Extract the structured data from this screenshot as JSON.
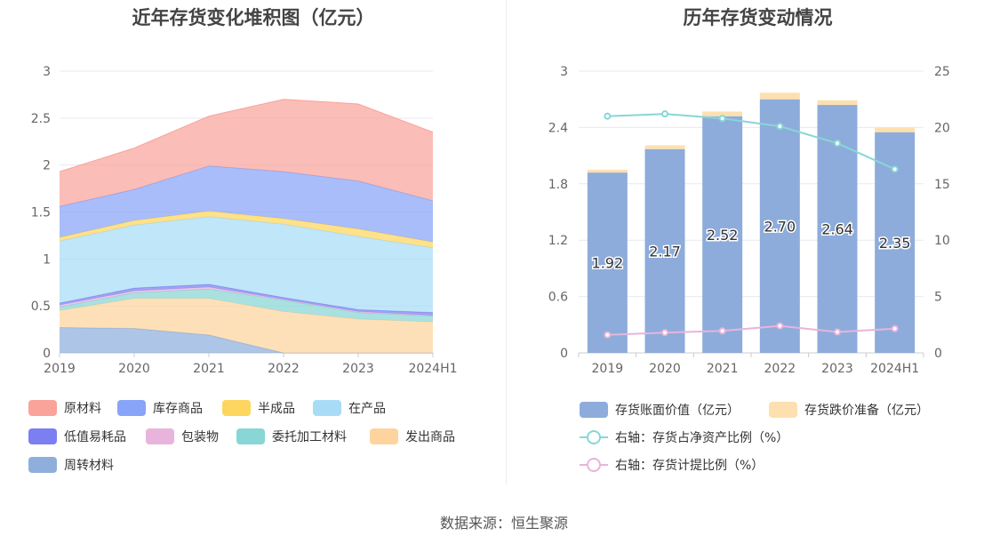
{
  "source": "数据来源：恒生聚源",
  "chart_data": [
    {
      "type": "area",
      "stacked": true,
      "title": "近年存货变化堆积图（亿元）",
      "categories": [
        "2019",
        "2020",
        "2021",
        "2022",
        "2023",
        "2024H1"
      ],
      "y_ticks": [
        "0",
        "0.5",
        "1",
        "1.5",
        "2",
        "2.5",
        "3"
      ],
      "ylim": [
        0,
        3
      ],
      "series": [
        {
          "name": "周转材料",
          "color": "#8eaedc",
          "values": [
            0.27,
            0.26,
            0.19,
            0.0,
            0.0,
            0.0
          ]
        },
        {
          "name": "发出商品",
          "color": "#fdd49d",
          "values": [
            0.18,
            0.32,
            0.39,
            0.44,
            0.36,
            0.33
          ]
        },
        {
          "name": "委托加工材料",
          "color": "#88d6d6",
          "values": [
            0.04,
            0.06,
            0.1,
            0.12,
            0.07,
            0.06
          ]
        },
        {
          "name": "包装物",
          "color": "#e8b4dc",
          "values": [
            0.02,
            0.02,
            0.02,
            0.01,
            0.01,
            0.01
          ]
        },
        {
          "name": "低值易耗品",
          "color": "#7b7ff1",
          "values": [
            0.02,
            0.03,
            0.03,
            0.02,
            0.02,
            0.03
          ]
        },
        {
          "name": "在产品",
          "color": "#a8dcf6",
          "values": [
            0.66,
            0.67,
            0.72,
            0.78,
            0.78,
            0.69
          ]
        },
        {
          "name": "半成品",
          "color": "#fcd65e",
          "values": [
            0.04,
            0.05,
            0.06,
            0.06,
            0.08,
            0.06
          ]
        },
        {
          "name": "库存商品",
          "color": "#88a4f8",
          "values": [
            0.33,
            0.33,
            0.48,
            0.5,
            0.51,
            0.44
          ]
        },
        {
          "name": "原材料",
          "color": "#f9a39b",
          "values": [
            0.37,
            0.44,
            0.53,
            0.77,
            0.82,
            0.73
          ]
        }
      ]
    },
    {
      "type": "bar",
      "title": "历年存货变动情况",
      "categories": [
        "2019",
        "2020",
        "2021",
        "2022",
        "2023",
        "2024H1"
      ],
      "y_ticks": [
        "0",
        "0.6",
        "1.2",
        "1.8",
        "2.4",
        "3"
      ],
      "ylim": [
        0,
        3
      ],
      "y2_ticks": [
        "0",
        "5",
        "10",
        "15",
        "20",
        "25"
      ],
      "y2lim": [
        0,
        25
      ],
      "series": [
        {
          "name": "存货账面价值（亿元）",
          "color": "#8dacdb",
          "values": [
            1.92,
            2.17,
            2.52,
            2.7,
            2.64,
            2.35
          ],
          "labels": [
            "1.92",
            "2.17",
            "2.52",
            "2.70",
            "2.64",
            "2.35"
          ]
        },
        {
          "name": "存货跌价准备（亿元）",
          "color": "#fde0b0",
          "values": [
            0.03,
            0.04,
            0.05,
            0.07,
            0.05,
            0.05
          ]
        }
      ],
      "line_series": [
        {
          "name": "右轴：存货占净资产比例（%）",
          "color": "#88d6d6",
          "values": [
            21.0,
            21.2,
            20.8,
            20.1,
            18.6,
            16.3
          ]
        },
        {
          "name": "右轴：存货计提比例（%）",
          "color": "#e8b4dc",
          "values": [
            1.6,
            1.8,
            1.95,
            2.4,
            1.85,
            2.15
          ]
        }
      ]
    }
  ]
}
